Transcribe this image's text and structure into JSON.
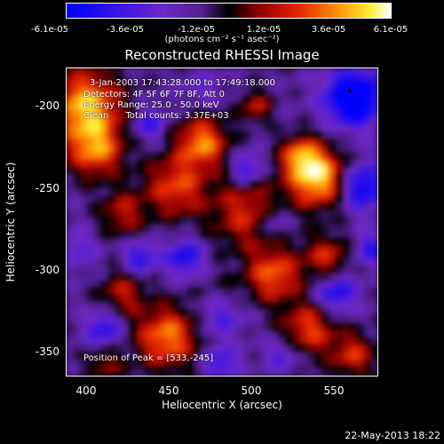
{
  "colorbar": {
    "ticks": [
      "-6.1e-05",
      "-3.6e-05",
      "-1.2e-05",
      "1.2e-05",
      "3.6e-05",
      "6.1e-05"
    ],
    "units": "(photons cm⁻² s⁻¹ asec⁻²)",
    "min": -6.1e-05,
    "max": 6.1e-05
  },
  "chart_data": {
    "type": "heatmap",
    "title": "Reconstructed RHESSI Image",
    "xlabel": "Heliocentric X (arcsec)",
    "ylabel": "Heliocentric Y (arcsec)",
    "xlim": [
      388,
      580
    ],
    "ylim": [
      -370,
      -180
    ],
    "xticks": [
      "400",
      "450",
      "500",
      "550"
    ],
    "yticks": [
      "-200",
      "-250",
      "-300",
      "-350"
    ],
    "annotations": {
      "time": "3-Jan-2003 17:43:28.000 to 17:49:18.000",
      "detectors": "Detectors: 4F 5F 6F 7F 8F, Att 0",
      "energy": "Energy Range: 25.0 - 50.0 keV",
      "clean": "Clean      Total counts: 3.37E+03",
      "peak": "Position of Peak = [533,-245]"
    },
    "peak": [
      533,
      -245
    ]
  },
  "footer": {
    "date": "22-May-2013 18:22"
  }
}
